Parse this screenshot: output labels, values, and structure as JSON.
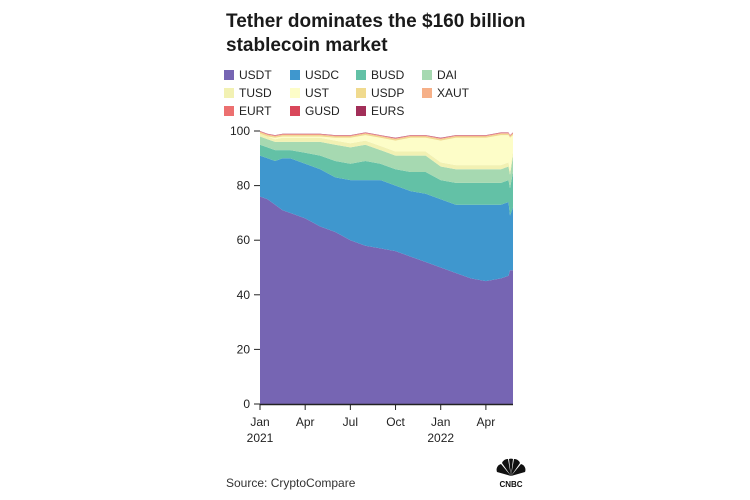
{
  "title": "Tether dominates the $160 billion stablecoin market",
  "source": "Source: CryptoCompare",
  "logo_text": "CNBC",
  "chart_data": {
    "type": "area",
    "stacked": true,
    "title": "Tether dominates the $160 billion stablecoin market",
    "xlabel": "",
    "ylabel": "",
    "ylim": [
      0,
      100
    ],
    "y_ticks": [
      "0",
      "20",
      "40",
      "60",
      "80",
      "100"
    ],
    "x_ticks": [
      {
        "month": 0,
        "label": "Jan",
        "sublabel": "2021"
      },
      {
        "month": 3,
        "label": "Apr",
        "sublabel": ""
      },
      {
        "month": 6,
        "label": "Jul",
        "sublabel": ""
      },
      {
        "month": 9,
        "label": "Oct",
        "sublabel": ""
      },
      {
        "month": 12,
        "label": "Jan",
        "sublabel": "2022"
      },
      {
        "month": 15,
        "label": "Apr",
        "sublabel": ""
      }
    ],
    "x": [
      0,
      0.5,
      1,
      1.5,
      2,
      3,
      4,
      5,
      6,
      7,
      8,
      9,
      10,
      11,
      12,
      13,
      14,
      15,
      16,
      16.5,
      16.6,
      16.8
    ],
    "series": [
      {
        "name": "USDT",
        "color": "#7665b3",
        "values": [
          76,
          75,
          73,
          71,
          70,
          68,
          65,
          63,
          60,
          58,
          57,
          56,
          54,
          52,
          50,
          48,
          46,
          45,
          46,
          47,
          49,
          49
        ]
      },
      {
        "name": "USDC",
        "color": "#3f97ce",
        "values": [
          15,
          15,
          16,
          19,
          20,
          20,
          21,
          20,
          22,
          24,
          25,
          24,
          24,
          25,
          25,
          25,
          27,
          28,
          27,
          27,
          20,
          23
        ]
      },
      {
        "name": "BUSD",
        "color": "#63c1a6",
        "values": [
          4,
          4,
          4,
          3,
          3,
          4,
          5,
          6,
          6,
          7,
          6,
          6,
          7,
          8,
          7,
          8,
          8,
          8,
          8,
          8,
          10,
          13
        ]
      },
      {
        "name": "DAI",
        "color": "#a6d9b1",
        "values": [
          3,
          3,
          3,
          3,
          3,
          4,
          5,
          6,
          6,
          6,
          5,
          5,
          6,
          6,
          5,
          5,
          5,
          5,
          5,
          5,
          5,
          6
        ]
      },
      {
        "name": "TUSD",
        "color": "#f2f1b3",
        "values": [
          1,
          1,
          1,
          1.5,
          1.5,
          1.5,
          1.5,
          1.5,
          1.5,
          1.5,
          1.5,
          1.5,
          1.5,
          1.5,
          1.5,
          1.5,
          1.5,
          1.5,
          1.5,
          1.5,
          1.5,
          1.5
        ]
      },
      {
        "name": "UST",
        "color": "#fdfdc8",
        "values": [
          0,
          0,
          0.5,
          0.5,
          0.5,
          0.5,
          0.5,
          1,
          2,
          2,
          3,
          4,
          5,
          5,
          8,
          10,
          10,
          10,
          11,
          10,
          12,
          6
        ]
      },
      {
        "name": "USDP",
        "color": "#f0da8e",
        "values": [
          0.5,
          0.5,
          0.5,
          0.5,
          0.5,
          0.5,
          0.5,
          0.5,
          0.5,
          0.5,
          0.5,
          0.5,
          0.5,
          0.5,
          0.5,
          0.5,
          0.5,
          0.5,
          0.5,
          0.5,
          0.5,
          0.5
        ]
      },
      {
        "name": "XAUT",
        "color": "#f6b088",
        "values": [
          0.2,
          0.2,
          0.2,
          0.2,
          0.2,
          0.2,
          0.2,
          0.2,
          0.2,
          0.2,
          0.2,
          0.2,
          0.2,
          0.2,
          0.2,
          0.2,
          0.2,
          0.2,
          0.2,
          0.2,
          0.2,
          0.2
        ]
      },
      {
        "name": "EURT",
        "color": "#ec7070",
        "values": [
          0.1,
          0.1,
          0.1,
          0.1,
          0.1,
          0.1,
          0.1,
          0.1,
          0.1,
          0.1,
          0.1,
          0.1,
          0.1,
          0.1,
          0.1,
          0.1,
          0.1,
          0.1,
          0.1,
          0.1,
          0.1,
          0.1
        ]
      },
      {
        "name": "GUSD",
        "color": "#d9475a",
        "values": [
          0.1,
          0.1,
          0.1,
          0.1,
          0.1,
          0.1,
          0.1,
          0.1,
          0.1,
          0.1,
          0.1,
          0.1,
          0.1,
          0.1,
          0.1,
          0.1,
          0.1,
          0.1,
          0.1,
          0.1,
          0.1,
          0.1
        ]
      },
      {
        "name": "EURS",
        "color": "#a22f59",
        "values": [
          0.1,
          0.1,
          0.1,
          0.1,
          0.1,
          0.1,
          0.1,
          0.1,
          0.1,
          0.1,
          0.1,
          0.1,
          0.1,
          0.1,
          0.1,
          0.1,
          0.1,
          0.1,
          0.1,
          0.1,
          0.1,
          0.1
        ]
      }
    ]
  }
}
